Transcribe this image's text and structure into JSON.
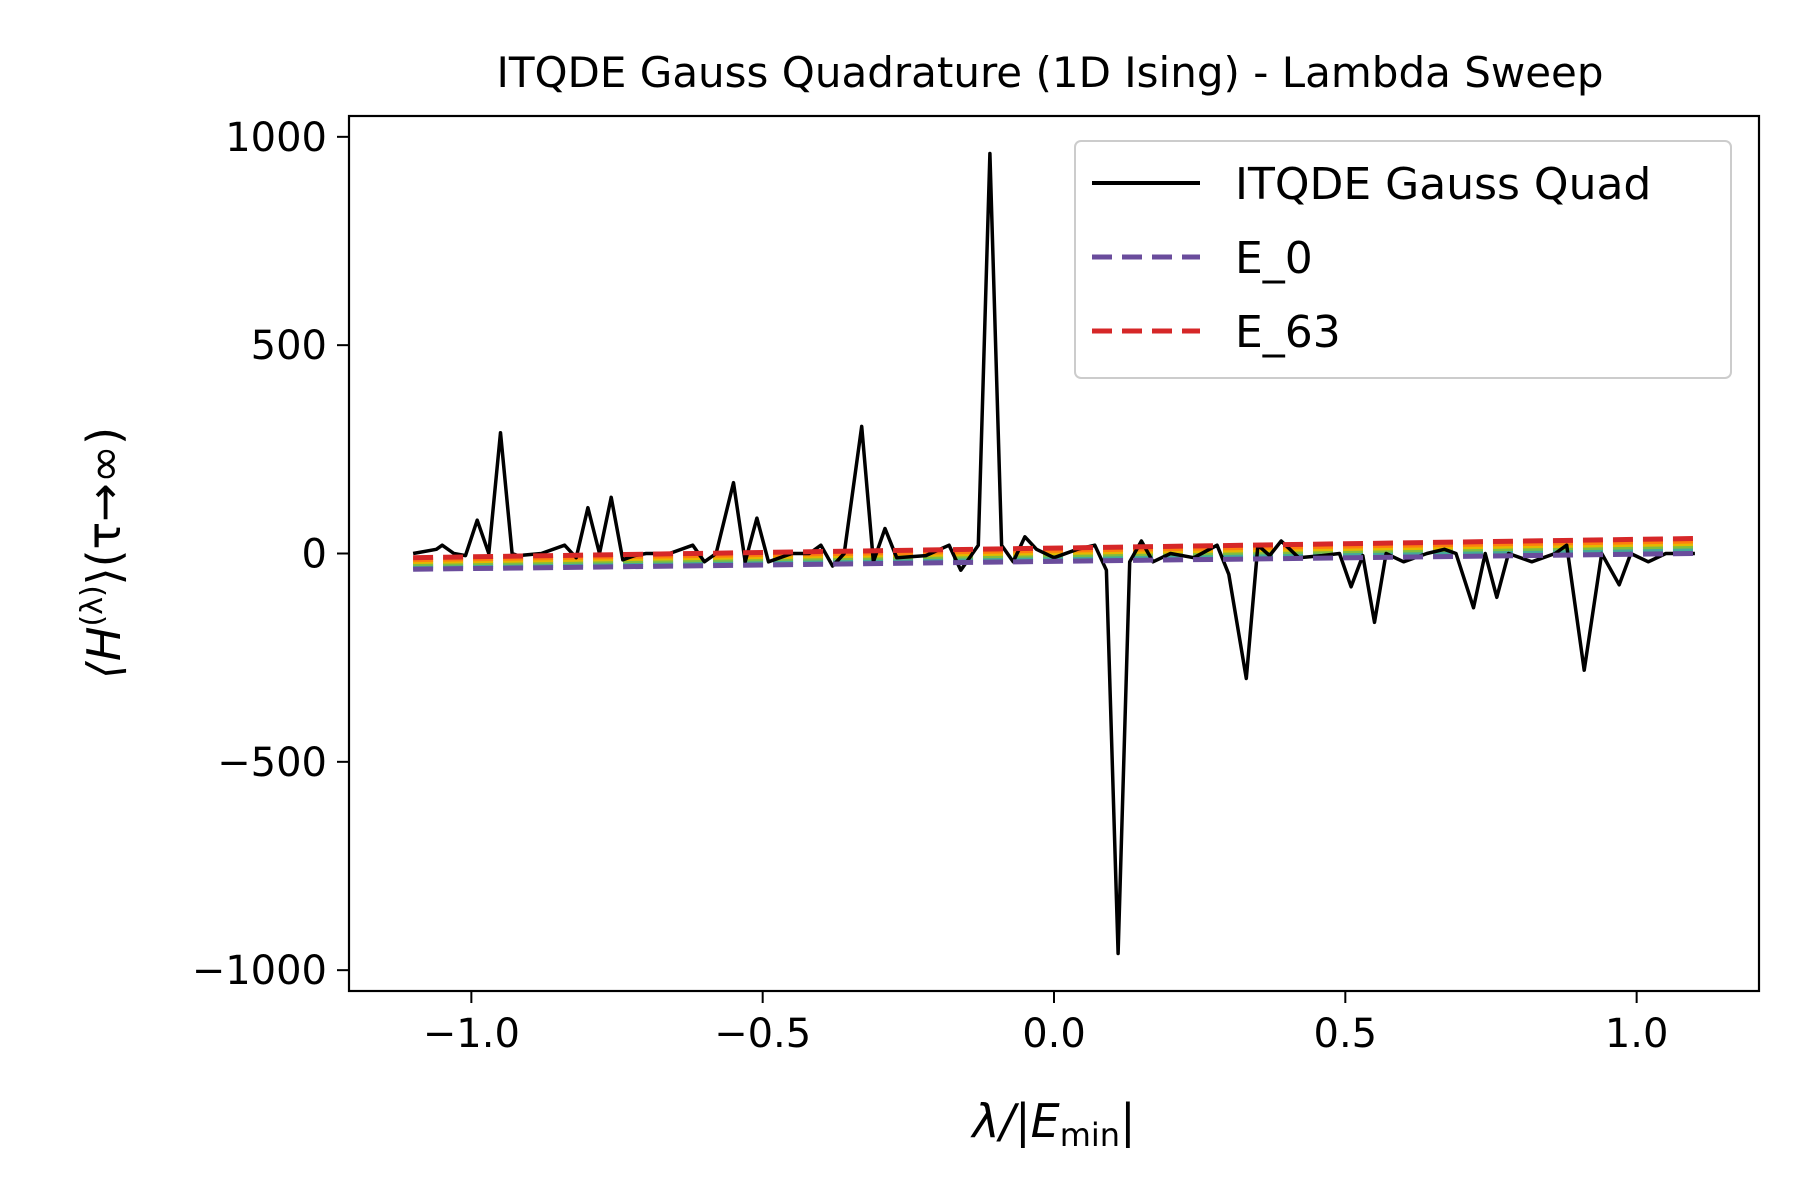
{
  "chart_data": {
    "type": "line",
    "title": "ITQDE Gauss Quadrature (1D Ising) - Lambda Sweep",
    "xlabel": "λ/|E_min|",
    "ylabel": "⟨H^(λ)⟩(τ→∞)",
    "xlim": [
      -1.21,
      1.21
    ],
    "ylim": [
      -1050,
      1050
    ],
    "xticks": [
      -1.0,
      -0.5,
      0.0,
      0.5,
      1.0
    ],
    "xtick_labels": [
      "−1.0",
      "−0.5",
      "0.0",
      "0.5",
      "1.0"
    ],
    "yticks": [
      1000,
      500,
      0,
      -500,
      -1000
    ],
    "ytick_labels": [
      "1000",
      "500",
      "0",
      "−500",
      "−1000"
    ],
    "grid": false,
    "legend": {
      "placement": "top-right",
      "entries": [
        {
          "label": "ITQDE Gauss Quad",
          "style": "solid",
          "color": "#000000"
        },
        {
          "label": "E_0",
          "style": "dashed",
          "color": "#6a4c9c"
        },
        {
          "label": "E_63",
          "style": "dashed",
          "color": "#d62728"
        }
      ]
    },
    "series": [
      {
        "name": "ITQDE Gauss Quad",
        "style": "solid",
        "color": "#000000",
        "x": [
          -1.1,
          -1.06,
          -1.05,
          -1.03,
          -1.01,
          -0.99,
          -0.97,
          -0.95,
          -0.93,
          -0.92,
          -0.88,
          -0.84,
          -0.82,
          -0.8,
          -0.78,
          -0.76,
          -0.74,
          -0.72,
          -0.7,
          -0.66,
          -0.62,
          -0.6,
          -0.58,
          -0.55,
          -0.53,
          -0.51,
          -0.49,
          -0.45,
          -0.42,
          -0.4,
          -0.38,
          -0.36,
          -0.33,
          -0.31,
          -0.29,
          -0.27,
          -0.22,
          -0.18,
          -0.16,
          -0.13,
          -0.11,
          -0.09,
          -0.07,
          -0.05,
          -0.03,
          0.0,
          0.04,
          0.07,
          0.09,
          0.11,
          0.13,
          0.15,
          0.17,
          0.2,
          0.24,
          0.28,
          0.3,
          0.33,
          0.35,
          0.37,
          0.39,
          0.42,
          0.46,
          0.49,
          0.51,
          0.53,
          0.55,
          0.57,
          0.6,
          0.64,
          0.67,
          0.69,
          0.72,
          0.74,
          0.76,
          0.78,
          0.82,
          0.86,
          0.88,
          0.91,
          0.94,
          0.97,
          0.99,
          1.02,
          1.05,
          1.1
        ],
        "y": [
          0,
          10,
          20,
          0,
          -5,
          80,
          0,
          290,
          0,
          -5,
          0,
          20,
          -10,
          110,
          0,
          135,
          -15,
          -5,
          0,
          0,
          20,
          -20,
          0,
          170,
          -20,
          85,
          -20,
          0,
          0,
          20,
          -30,
          0,
          305,
          -20,
          60,
          -10,
          -5,
          20,
          -40,
          20,
          960,
          20,
          -20,
          40,
          10,
          -10,
          10,
          20,
          -40,
          -960,
          -20,
          30,
          -20,
          0,
          -10,
          20,
          -50,
          -300,
          20,
          -5,
          30,
          -10,
          -5,
          0,
          -80,
          -5,
          -165,
          0,
          -20,
          0,
          10,
          0,
          -130,
          0,
          -105,
          0,
          -20,
          0,
          20,
          -280,
          0,
          -75,
          0,
          -20,
          0,
          0
        ]
      },
      {
        "name": "E_0",
        "style": "dashed",
        "color": "#6a4c9c",
        "x": [
          -1.1,
          1.1
        ],
        "y": [
          -38,
          0
        ]
      },
      {
        "name": "E_63",
        "style": "dashed",
        "color": "#d62728",
        "x": [
          -1.1,
          1.1
        ],
        "y": [
          -10,
          36
        ]
      }
    ],
    "intermediate_band_colors": [
      "#6a4c9c",
      "#3b7fb9",
      "#44aa99",
      "#7fbf3f",
      "#e6b800",
      "#ff7f0e",
      "#d62728"
    ]
  }
}
